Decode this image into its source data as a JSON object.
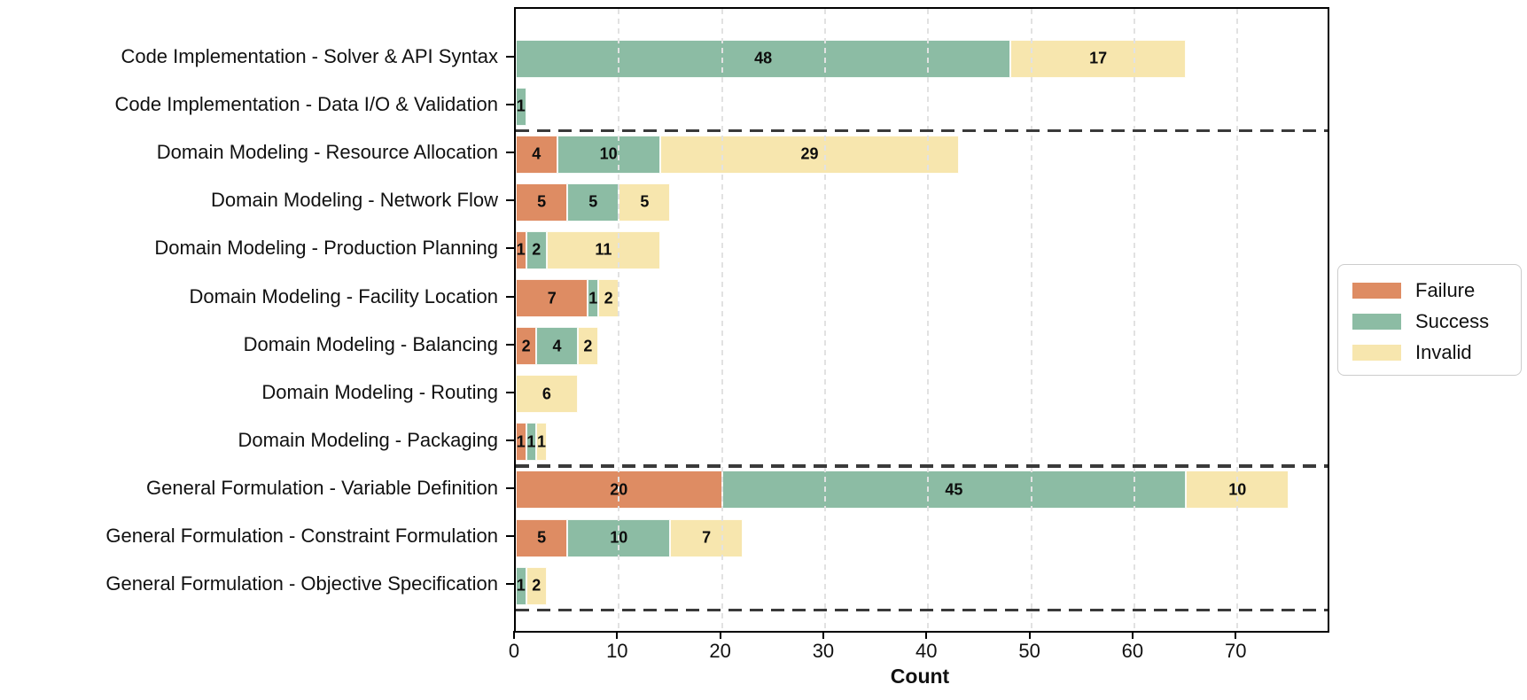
{
  "chart_data": {
    "type": "bar",
    "orientation": "horizontal",
    "stacked": true,
    "title": "",
    "xlabel": "Count",
    "ylabel": "",
    "categories": [
      "Code Implementation - Solver & API Syntax",
      "Code Implementation - Data I/O & Validation",
      "Domain Modeling - Resource Allocation",
      "Domain Modeling - Network Flow",
      "Domain Modeling - Production Planning",
      "Domain Modeling - Facility Location",
      "Domain Modeling - Balancing",
      "Domain Modeling - Routing",
      "Domain Modeling - Packaging",
      "General Formulation - Variable Definition",
      "General Formulation - Constraint Formulation",
      "General Formulation - Objective Specification"
    ],
    "series": [
      {
        "name": "Failure",
        "color": "#DE8C63",
        "values": [
          0,
          0,
          4,
          5,
          1,
          7,
          2,
          0,
          1,
          20,
          5,
          0
        ]
      },
      {
        "name": "Success",
        "color": "#8CBCA4",
        "values": [
          48,
          1,
          10,
          5,
          2,
          1,
          4,
          0,
          1,
          45,
          10,
          1
        ]
      },
      {
        "name": "Invalid",
        "color": "#F7E6AE",
        "values": [
          17,
          0,
          29,
          5,
          11,
          2,
          2,
          6,
          1,
          10,
          7,
          2
        ]
      }
    ],
    "x_ticks": [
      0,
      10,
      20,
      30,
      40,
      50,
      60,
      70
    ],
    "xlim": [
      0,
      78.75
    ],
    "grid": "vertical-dashed",
    "legend": {
      "position": "right-outside",
      "entries": [
        "Failure",
        "Success",
        "Invalid"
      ]
    },
    "group_separators_after": [
      "Code Implementation - Data I/O & Validation",
      "Domain Modeling - Packaging",
      "General Formulation - Objective Specification"
    ],
    "separator_style": "dashed-dark"
  }
}
